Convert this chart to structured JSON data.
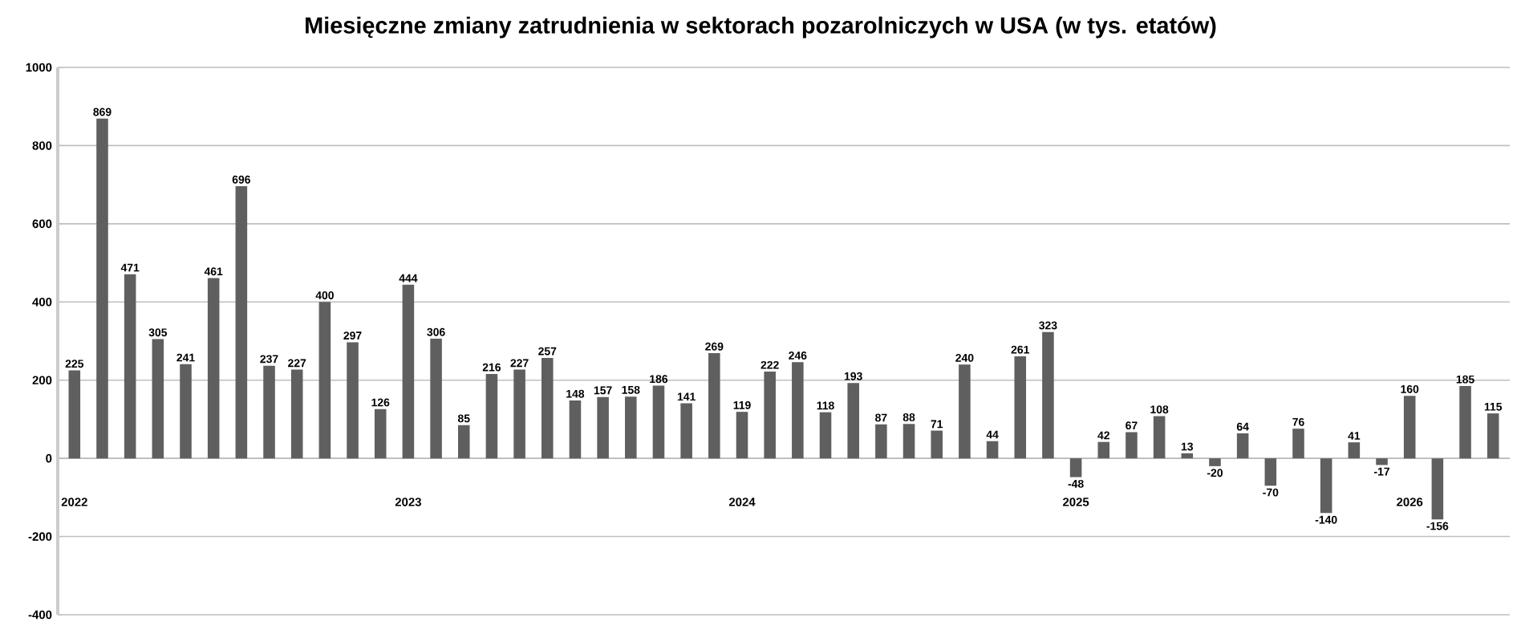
{
  "chart_data": {
    "type": "bar",
    "title": "Miesięczne zmiany zatrudnienia w sektorach pozarolniczych w USA (w tys. etatów)",
    "categories": [
      "2022",
      null,
      null,
      null,
      null,
      null,
      null,
      null,
      null,
      null,
      null,
      null,
      "2023",
      null,
      null,
      null,
      null,
      null,
      null,
      null,
      null,
      null,
      null,
      null,
      "2024",
      null,
      null,
      null,
      null,
      null,
      null,
      null,
      null,
      null,
      null,
      null,
      "2025",
      null,
      null,
      null,
      null,
      null,
      null,
      null,
      null,
      null,
      null,
      null,
      "2026",
      null,
      null,
      null
    ],
    "values": [
      225,
      869,
      471,
      305,
      241,
      461,
      696,
      237,
      227,
      400,
      297,
      126,
      444,
      306,
      85,
      216,
      227,
      257,
      148,
      157,
      158,
      186,
      141,
      269,
      119,
      222,
      246,
      118,
      193,
      87,
      88,
      71,
      240,
      44,
      261,
      323,
      -48,
      42,
      67,
      108,
      13,
      -20,
      64,
      -70,
      76,
      -140,
      41,
      -17,
      160,
      -156,
      185,
      115
    ],
    "color": "#5f5f5f",
    "ylim": [
      -400,
      1000
    ],
    "yticks": [
      -400,
      -200,
      0,
      200,
      400,
      600,
      800,
      1000
    ],
    "grid": "y",
    "data_labels": true
  }
}
